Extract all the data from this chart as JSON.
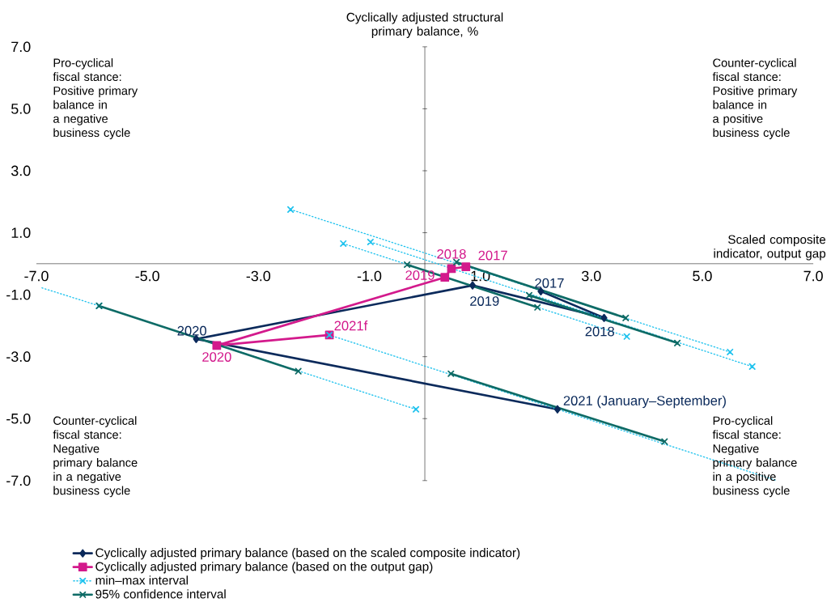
{
  "chart_data": {
    "type": "line",
    "xlabel": "Scaled composite indicator, output gap",
    "ylabel": "Cyclically adjusted structural primary balance, %",
    "xlim": [
      -7,
      7
    ],
    "ylim": [
      -7,
      7
    ],
    "xticks": [
      {
        "value": -7,
        "label": "-7.0"
      },
      {
        "value": -5,
        "label": "-5.0"
      },
      {
        "value": -3,
        "label": "-3.0"
      },
      {
        "value": -1,
        "label": "-1.0"
      },
      {
        "value": 1,
        "label": "1.0"
      },
      {
        "value": 3,
        "label": "3.0"
      },
      {
        "value": 5,
        "label": "5.0"
      },
      {
        "value": 7,
        "label": "7.0"
      }
    ],
    "yticks": [
      {
        "value": -7,
        "label": "-7.0"
      },
      {
        "value": -5,
        "label": "-5.0"
      },
      {
        "value": -3,
        "label": "-3.0"
      },
      {
        "value": -1,
        "label": "-1.0"
      },
      {
        "value": 1,
        "label": "1.0"
      },
      {
        "value": 3,
        "label": "3.0"
      },
      {
        "value": 5,
        "label": "5.0"
      },
      {
        "value": 7,
        "label": "7.0"
      }
    ],
    "legend": "bottom",
    "series": [
      {
        "name": "Cyclically adjusted primary balance (based on the scaled composite indicator)",
        "color": "#0b2a5b",
        "marker": "diamond",
        "line_style": "solid",
        "x": [
          2.09,
          3.23,
          0.86,
          -4.12,
          2.39
        ],
        "values": [
          -0.89,
          -1.75,
          -0.7,
          -2.43,
          -4.7
        ]
      },
      {
        "name": "Cyclically adjusted primary balance (based on the output gap)",
        "color": "#d31a8c",
        "marker": "square",
        "line_style": "solid",
        "x": [
          0.74,
          0.48,
          0.36,
          -3.75,
          -1.72
        ],
        "values": [
          -0.1,
          -0.16,
          -0.44,
          -2.64,
          -2.3
        ]
      },
      {
        "name": "min–max interval",
        "color": "#1ec2ee",
        "marker": "cross",
        "line_style": "dotted",
        "x": [
          -2.42,
          5.5,
          null,
          -0.98,
          5.9,
          null,
          -1.47,
          3.64,
          null,
          -5.87,
          -0.16,
          null,
          -1.72
        ],
        "values": [
          1.75,
          -2.85,
          null,
          0.7,
          -3.32,
          null,
          0.65,
          -2.35,
          null,
          -1.36,
          -4.7,
          null,
          -2.3
        ]
      },
      {
        "color": "#1ec2ee",
        "marker": "none",
        "line_style": "dotted",
        "x": [
          -6.9,
          -5.87,
          null,
          -1.72,
          6.34
        ],
        "values": [
          -0.78,
          -1.36,
          null,
          -2.3,
          -7.0
        ]
      },
      {
        "name": "95% confidence interval",
        "color": "#0e6b66",
        "marker": "cross",
        "line_style": "solid",
        "x": [
          0.57,
          3.62,
          null,
          -0.32,
          2.03,
          null,
          1.88,
          4.55,
          null,
          -5.87,
          -2.28,
          null,
          0.47,
          4.32
        ],
        "values": [
          0.05,
          -1.75,
          null,
          -0.03,
          -1.41,
          null,
          -1.02,
          -2.56,
          null,
          -1.36,
          -3.47,
          null,
          -3.55,
          -5.74
        ]
      }
    ],
    "annotations": [
      {
        "text": "2017",
        "x": 2.09,
        "y": -0.89
      },
      {
        "text": "2018",
        "x": 3.23,
        "y": -1.75
      },
      {
        "text": "2019",
        "x": 0.86,
        "y": -0.7
      },
      {
        "text": "2020",
        "x": -4.12,
        "y": -2.43
      },
      {
        "text": "2021 (January–September)",
        "x": 2.39,
        "y": -4.7
      },
      {
        "text": "2017",
        "x": 0.74,
        "y": -0.1
      },
      {
        "text": "2018",
        "x": 0.48,
        "y": -0.16
      },
      {
        "text": "2019",
        "x": 0.36,
        "y": -0.44
      },
      {
        "text": "2020",
        "x": -3.75,
        "y": -2.64
      },
      {
        "text": "2021f",
        "x": -1.72,
        "y": -2.3
      },
      "Pro-cyclical fiscal stance: Positive primary balance in a negative business cycle",
      "Counter-cyclical fiscal stance: Positive primary balance in a positive business cycle",
      "Counter-cyclical fiscal stance: Negative primary balance in a negative business cycle",
      "Pro-cyclical fiscal stance: Negative primary balance in a positive business cycle"
    ]
  }
}
